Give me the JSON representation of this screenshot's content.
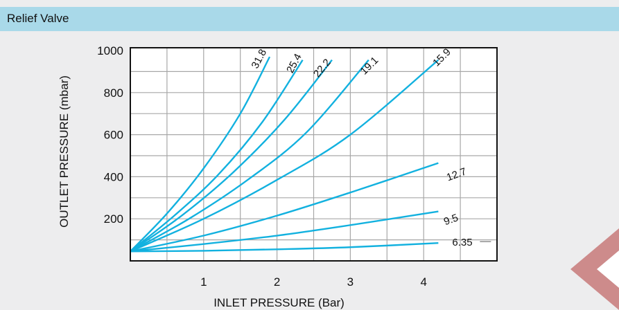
{
  "header": {
    "title": "Relief Valve"
  },
  "chart_data": {
    "type": "line",
    "title": "Relief Valve",
    "xlabel": "INLET PRESSURE (Bar)",
    "ylabel": "OUTLET PRESSURE (mbar)",
    "xlim": [
      0,
      5
    ],
    "ylim": [
      0,
      1000
    ],
    "x_ticks": [
      1,
      2,
      3,
      4
    ],
    "y_ticks": [
      200,
      400,
      600,
      800,
      1000
    ],
    "grid": true,
    "line_color": "#12b1df",
    "series": [
      {
        "name": "31.8",
        "x": [
          0,
          0.5,
          1.0,
          1.5,
          1.9
        ],
        "y": [
          45,
          225,
          440,
          700,
          970
        ]
      },
      {
        "name": "25.4",
        "x": [
          0,
          0.6,
          1.2,
          1.8,
          2.35
        ],
        "y": [
          45,
          215,
          410,
          660,
          955
        ]
      },
      {
        "name": "22.2",
        "x": [
          0,
          0.7,
          1.4,
          2.1,
          2.75
        ],
        "y": [
          45,
          215,
          420,
          670,
          955
        ]
      },
      {
        "name": "19.1",
        "x": [
          0,
          0.8,
          1.6,
          2.4,
          3.25
        ],
        "y": [
          45,
          200,
          385,
          610,
          955
        ]
      },
      {
        "name": "15.9",
        "x": [
          0,
          1.0,
          2.0,
          3.0,
          4.2
        ],
        "y": [
          45,
          200,
          385,
          600,
          955
        ]
      },
      {
        "name": "12.7",
        "x": [
          0,
          1.0,
          2.0,
          3.0,
          4.2
        ],
        "y": [
          45,
          120,
          215,
          325,
          465
        ]
      },
      {
        "name": "9.5",
        "x": [
          0,
          1.0,
          2.0,
          3.0,
          4.2
        ],
        "y": [
          45,
          80,
          120,
          170,
          235
        ]
      },
      {
        "name": "6.35",
        "x": [
          0,
          1.0,
          2.0,
          3.0,
          4.2
        ],
        "y": [
          45,
          48,
          55,
          65,
          85
        ]
      }
    ]
  },
  "decoration": {
    "corner_color": "#cd8b8b"
  }
}
